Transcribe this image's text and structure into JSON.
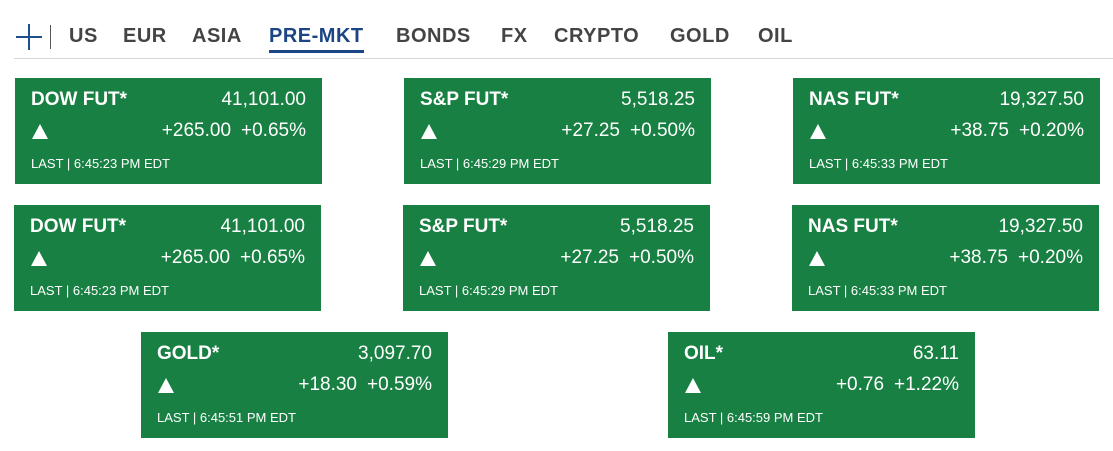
{
  "nav": {
    "tabs": [
      {
        "label": "US"
      },
      {
        "label": "EUR"
      },
      {
        "label": "ASIA"
      },
      {
        "label": "PRE-MKT",
        "active": true
      },
      {
        "label": "BONDS"
      },
      {
        "label": "FX"
      },
      {
        "label": "CRYPTO"
      },
      {
        "label": "GOLD"
      },
      {
        "label": "OIL"
      }
    ],
    "add_icon": "plus-icon",
    "accent_color": "#1b4585"
  },
  "colors": {
    "card_up_bg": "#178042",
    "card_text": "#ffffff"
  },
  "quotes": [
    {
      "name": "DOW FUT*",
      "price": "41,101.00",
      "direction": "up",
      "change": "+265.00",
      "pct": "+0.65%",
      "timestamp": "LAST | 6:45:23 PM EDT"
    },
    {
      "name": "S&P FUT*",
      "price": "5,518.25",
      "direction": "up",
      "change": "+27.25",
      "pct": "+0.50%",
      "timestamp": "LAST | 6:45:29 PM EDT"
    },
    {
      "name": "NAS FUT*",
      "price": "19,327.50",
      "direction": "up",
      "change": "+38.75",
      "pct": "+0.20%",
      "timestamp": "LAST | 6:45:33 PM EDT"
    },
    {
      "name": "DOW FUT*",
      "price": "41,101.00",
      "direction": "up",
      "change": "+265.00",
      "pct": "+0.65%",
      "timestamp": "LAST | 6:45:23 PM EDT"
    },
    {
      "name": "S&P FUT*",
      "price": "5,518.25",
      "direction": "up",
      "change": "+27.25",
      "pct": "+0.50%",
      "timestamp": "LAST | 6:45:29 PM EDT"
    },
    {
      "name": "NAS FUT*",
      "price": "19,327.50",
      "direction": "up",
      "change": "+38.75",
      "pct": "+0.20%",
      "timestamp": "LAST | 6:45:33 PM EDT"
    },
    {
      "name": "GOLD*",
      "price": "3,097.70",
      "direction": "up",
      "change": "+18.30",
      "pct": "+0.59%",
      "timestamp": "LAST | 6:45:51 PM EDT"
    },
    {
      "name": "OIL*",
      "price": "63.11",
      "direction": "up",
      "change": "+0.76",
      "pct": "+1.22%",
      "timestamp": "LAST | 6:45:59 PM EDT"
    }
  ]
}
